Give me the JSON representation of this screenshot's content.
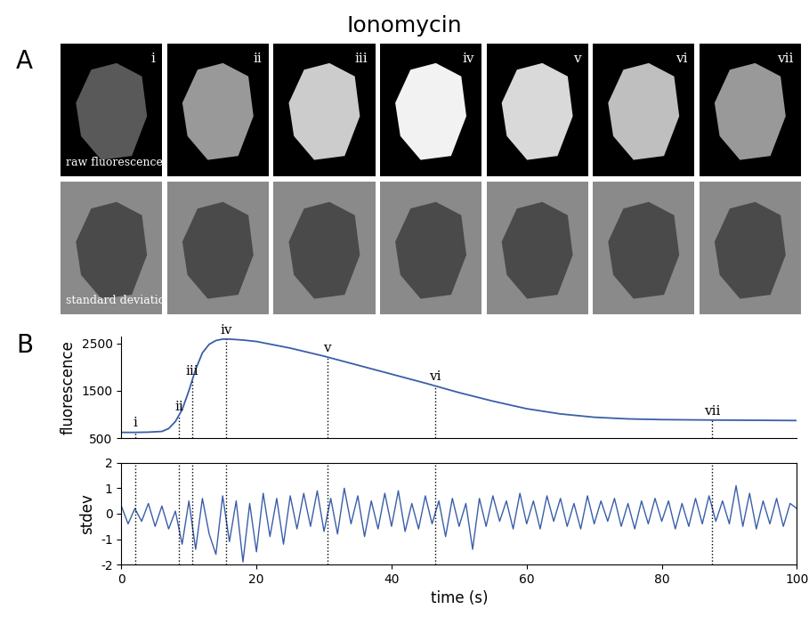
{
  "title": "Ionomycin",
  "panel_labels": [
    "A",
    "B"
  ],
  "image_rows": [
    "raw fluorescence",
    "standard deviation"
  ],
  "markers": [
    {
      "label": "i",
      "x": 2
    },
    {
      "label": "ii",
      "x": 8.5
    },
    {
      "label": "iii",
      "x": 10.5
    },
    {
      "label": "iv",
      "x": 15.5
    },
    {
      "label": "v",
      "x": 30.5
    },
    {
      "label": "vi",
      "x": 46.5
    },
    {
      "label": "vii",
      "x": 87.5
    }
  ],
  "chart_data": [
    {
      "type": "line",
      "y_label": "fluorescence",
      "color": "#3a5ea8",
      "tick_labels": "y",
      "x": [
        0,
        2,
        4,
        6,
        7,
        8,
        9,
        10,
        11,
        12,
        13,
        14,
        15,
        16,
        18,
        20,
        25,
        30,
        35,
        40,
        45,
        50,
        55,
        60,
        65,
        70,
        75,
        80,
        88,
        95,
        100
      ],
      "values": [
        620,
        620,
        625,
        640,
        700,
        850,
        1100,
        1500,
        1950,
        2300,
        2480,
        2560,
        2590,
        2590,
        2570,
        2540,
        2400,
        2230,
        2040,
        1850,
        1660,
        1460,
        1280,
        1120,
        1010,
        940,
        905,
        890,
        880,
        875,
        870
      ],
      "xlim": [
        0,
        100
      ],
      "ylim": [
        500,
        2650
      ],
      "yticks": [
        500,
        1500,
        2500
      ]
    },
    {
      "type": "line",
      "y_label": "stdev",
      "x_label": "time (s)",
      "color": "#3a5ea8",
      "x": [
        0,
        1,
        2,
        3,
        4,
        5,
        6,
        7,
        8,
        9,
        10,
        11,
        12,
        13,
        14,
        15,
        16,
        17,
        18,
        19,
        20,
        21,
        22,
        23,
        24,
        25,
        26,
        27,
        28,
        29,
        30,
        31,
        32,
        33,
        34,
        35,
        36,
        37,
        38,
        39,
        40,
        41,
        42,
        43,
        44,
        45,
        46,
        47,
        48,
        49,
        50,
        51,
        52,
        53,
        54,
        55,
        56,
        57,
        58,
        59,
        60,
        61,
        62,
        63,
        64,
        65,
        66,
        67,
        68,
        69,
        70,
        71,
        72,
        73,
        74,
        75,
        76,
        77,
        78,
        79,
        80,
        81,
        82,
        83,
        84,
        85,
        86,
        87,
        88,
        89,
        90,
        91,
        92,
        93,
        94,
        95,
        96,
        97,
        98,
        99,
        100
      ],
      "values": [
        0.3,
        -0.4,
        0.2,
        -0.3,
        0.4,
        -0.5,
        0.3,
        -0.6,
        0.1,
        -1.2,
        0.5,
        -1.4,
        0.6,
        -0.8,
        -1.6,
        0.7,
        -1.1,
        0.5,
        -1.9,
        0.4,
        -1.5,
        0.8,
        -0.9,
        0.6,
        -1.2,
        0.7,
        -0.6,
        0.8,
        -0.5,
        0.9,
        -0.7,
        0.6,
        -0.8,
        1.0,
        -0.4,
        0.7,
        -0.9,
        0.5,
        -0.6,
        0.8,
        -0.5,
        0.9,
        -0.7,
        0.4,
        -0.6,
        0.7,
        -0.4,
        0.5,
        -0.9,
        0.6,
        -0.5,
        0.4,
        -1.4,
        0.6,
        -0.5,
        0.7,
        -0.3,
        0.5,
        -0.6,
        0.8,
        -0.4,
        0.5,
        -0.6,
        0.7,
        -0.3,
        0.6,
        -0.5,
        0.4,
        -0.6,
        0.7,
        -0.4,
        0.5,
        -0.3,
        0.6,
        -0.5,
        0.4,
        -0.6,
        0.5,
        -0.4,
        0.6,
        -0.3,
        0.5,
        -0.6,
        0.4,
        -0.5,
        0.6,
        -0.4,
        0.7,
        -0.3,
        0.5,
        -0.4,
        1.1,
        -0.5,
        0.8,
        -0.6,
        0.5,
        -0.4,
        0.6,
        -0.5,
        0.4,
        0.2
      ],
      "xlim": [
        0,
        100
      ],
      "ylim": [
        -2,
        2
      ],
      "xticks": [
        0,
        20,
        40,
        60,
        80,
        100
      ],
      "yticks": [
        -2,
        -1,
        0,
        1,
        2
      ]
    }
  ]
}
